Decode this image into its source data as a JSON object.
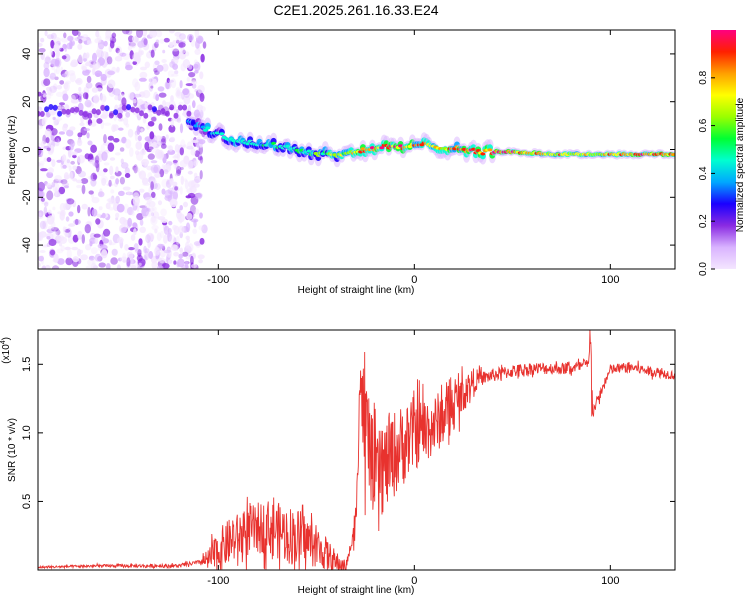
{
  "title": "C2E1.2025.261.16.33.E24",
  "chart_data": [
    {
      "id": "spectrogram",
      "type": "heatmap",
      "xlabel": "Height of straight line (km)",
      "ylabel": "Frequency (Hz)",
      "xlim": [
        -192,
        133
      ],
      "ylim": [
        -50,
        50
      ],
      "xticks": [
        -100,
        0,
        100
      ],
      "yticks": [
        -40,
        -20,
        0,
        20,
        40
      ],
      "colorbar": {
        "label": "Normalized spectral amplitude",
        "range": [
          0,
          1
        ],
        "ticks": [
          "0.0",
          "0.2",
          "0.4",
          "0.6",
          "0.8"
        ],
        "colormap": [
          "#f4e6ff",
          "#d9b3ff",
          "#8a2be2",
          "#1a00ff",
          "#00a8ff",
          "#00ffd0",
          "#00ff33",
          "#9aff00",
          "#ffff00",
          "#ffa000",
          "#ff2000",
          "#ff0080"
        ]
      },
      "noise_region_x": [
        -192,
        -115
      ],
      "ridge": {
        "x": [
          -115,
          -105,
          -95,
          -85,
          -75,
          -65,
          -55,
          -45,
          -35,
          -25,
          -15,
          -5,
          5,
          15,
          25,
          35,
          50,
          70,
          90,
          110,
          133
        ],
        "freq": [
          12,
          8,
          5,
          3,
          2,
          1,
          -1,
          -2,
          -2,
          0,
          1,
          1,
          2,
          1,
          0,
          -1,
          -1,
          -2,
          -2,
          -2,
          -2
        ],
        "amplitude": [
          0.35,
          0.4,
          0.45,
          0.5,
          0.5,
          0.55,
          0.55,
          0.6,
          0.75,
          0.95,
          0.95,
          0.9,
          0.85,
          0.8,
          0.9,
          0.95,
          0.95,
          0.8,
          0.75,
          0.85,
          0.95
        ]
      },
      "left_band_freq": 16
    },
    {
      "id": "snr",
      "type": "line",
      "xlabel": "Height of straight line (km)",
      "ylabel": "SNR (10 * v/v)",
      "multiplier": "(x10",
      "multiplier_exp": "4",
      "multiplier_close": ")",
      "xlim": [
        -192,
        133
      ],
      "ylim": [
        0,
        17500
      ],
      "xticks": [
        -100,
        0,
        100
      ],
      "yticks": [
        5000,
        10000,
        15000
      ],
      "ytick_labels": [
        "0.5",
        "1.0",
        "1.5"
      ],
      "color": "#e8322e",
      "series": [
        {
          "name": "SNR",
          "x": [
            -192,
            -160,
            -120,
            -105,
            -95,
            -85,
            -75,
            -65,
            -55,
            -45,
            -40,
            -35,
            -30,
            -28,
            -20,
            -10,
            0,
            10,
            20,
            30,
            40,
            50,
            60,
            70,
            80,
            89,
            90,
            91,
            100,
            110,
            120,
            133
          ],
          "y": [
            200,
            300,
            300,
            700,
            2000,
            2800,
            3200,
            2600,
            2200,
            1200,
            500,
            200,
            3000,
            13500,
            6500,
            8500,
            10000,
            10500,
            12000,
            13800,
            14200,
            14500,
            14700,
            14700,
            14700,
            15000,
            17200,
            11500,
            14600,
            14800,
            14500,
            14200
          ]
        }
      ],
      "noise_amplitude": [
        {
          "x": -192,
          "a": 80
        },
        {
          "x": -110,
          "a": 150
        },
        {
          "x": -100,
          "a": 1600
        },
        {
          "x": -60,
          "a": 2200
        },
        {
          "x": -40,
          "a": 900
        },
        {
          "x": -32,
          "a": 200
        },
        {
          "x": -28,
          "a": 3500
        },
        {
          "x": -10,
          "a": 3200
        },
        {
          "x": 20,
          "a": 1800
        },
        {
          "x": 35,
          "a": 500
        },
        {
          "x": 133,
          "a": 350
        }
      ],
      "spikes": [
        {
          "x": -27,
          "y": 14000
        },
        {
          "x": -25,
          "y": 4000
        },
        {
          "x": 89.5,
          "y": 17500
        },
        {
          "x": 90.5,
          "y": 11200
        }
      ]
    }
  ]
}
